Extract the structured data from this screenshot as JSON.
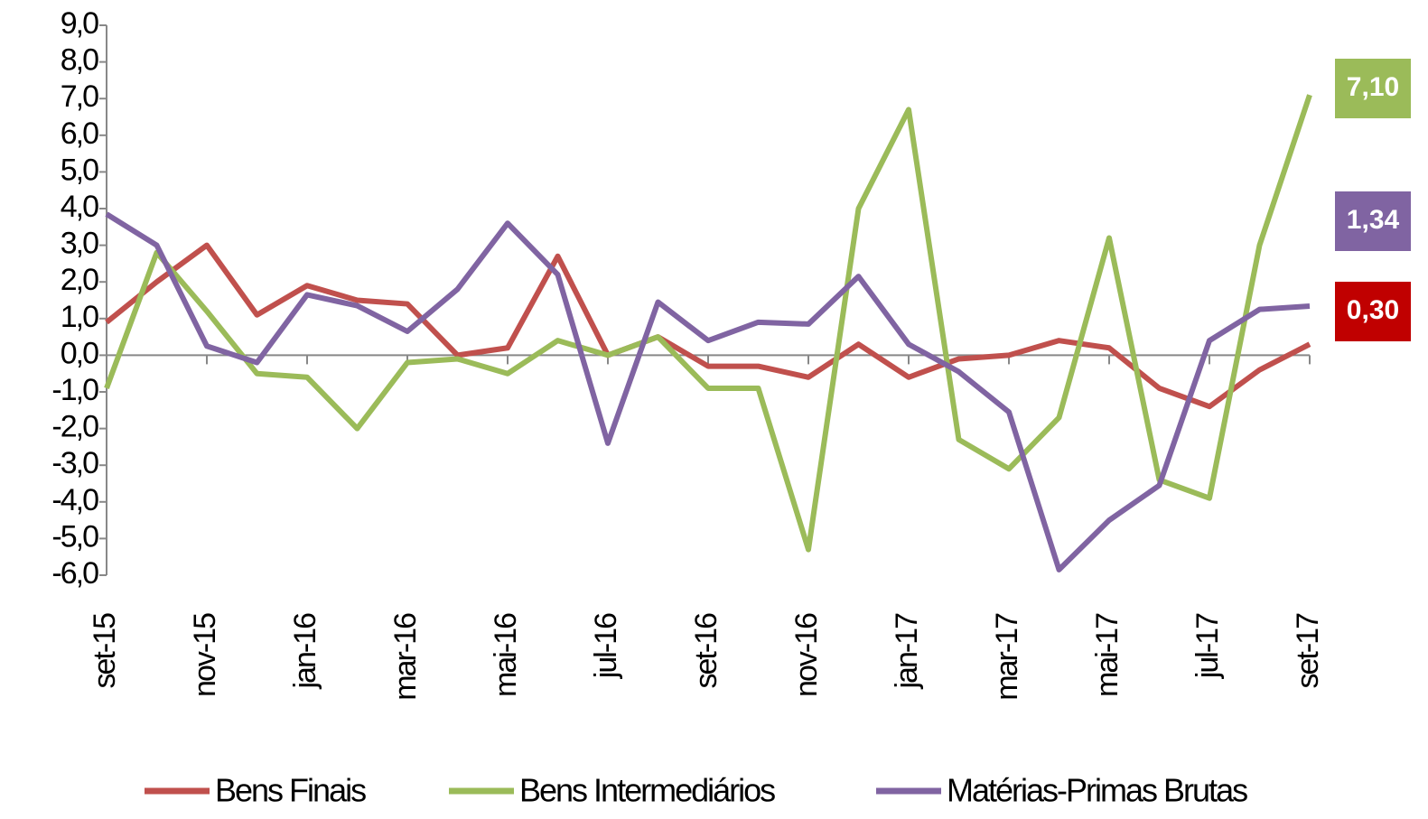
{
  "chart_data": {
    "type": "line",
    "categories": [
      "set-15",
      null,
      "nov-15",
      null,
      "jan-16",
      null,
      "mar-16",
      null,
      "mai-16",
      null,
      "jul-16",
      null,
      "set-16",
      null,
      "nov-16",
      null,
      "jan-17",
      null,
      "mar-17",
      null,
      "mai-17",
      null,
      "jul-17",
      null,
      "set-17"
    ],
    "series": [
      {
        "name": "Bens Finais",
        "color": "#c0504d",
        "label_color": "#c00000",
        "values": [
          0.9,
          2.0,
          3.0,
          1.1,
          1.9,
          1.5,
          1.4,
          0.0,
          0.2,
          2.7,
          0.0,
          0.5,
          -0.3,
          -0.3,
          -0.6,
          0.3,
          -0.6,
          -0.1,
          0.0,
          0.4,
          0.2,
          -0.9,
          -1.4,
          -0.4,
          0.3
        ],
        "value_labels": [
          null,
          null,
          null,
          null,
          null,
          null,
          null,
          null,
          null,
          null,
          null,
          null,
          null,
          null,
          null,
          null,
          null,
          null,
          null,
          null,
          null,
          null,
          null,
          null,
          "0,30"
        ]
      },
      {
        "name": "Bens Intermediários",
        "color": "#9bbb59",
        "label_color": "#9bbb59",
        "values": [
          -0.9,
          2.8,
          1.2,
          -0.5,
          -0.6,
          -2.0,
          -0.2,
          -0.1,
          -0.5,
          0.4,
          0.0,
          0.5,
          -0.9,
          -0.9,
          -5.3,
          4.0,
          6.7,
          -2.3,
          -3.1,
          -1.7,
          3.2,
          -3.4,
          -3.9,
          3.0,
          7.1
        ],
        "value_labels": [
          null,
          null,
          null,
          null,
          null,
          null,
          null,
          null,
          null,
          null,
          null,
          null,
          null,
          null,
          null,
          null,
          null,
          null,
          null,
          null,
          null,
          null,
          null,
          null,
          "7,10"
        ]
      },
      {
        "name": "Matérias-Primas Brutas",
        "color": "#8064a2",
        "label_color": "#8064a2",
        "values": [
          3.85,
          3.0,
          0.25,
          -0.2,
          1.65,
          1.35,
          0.65,
          1.8,
          3.6,
          2.2,
          -2.4,
          1.45,
          0.4,
          0.9,
          0.85,
          2.15,
          0.3,
          -0.45,
          -1.55,
          -5.85,
          -4.5,
          -3.55,
          0.4,
          1.25,
          1.34
        ],
        "value_labels": [
          null,
          null,
          null,
          null,
          null,
          null,
          null,
          null,
          null,
          null,
          null,
          null,
          null,
          null,
          null,
          null,
          null,
          null,
          null,
          null,
          null,
          null,
          null,
          null,
          "1,34"
        ]
      }
    ],
    "ylim": [
      -6,
      9
    ],
    "yticks": [
      {
        "value": -6,
        "label": "-6,0"
      },
      {
        "value": -5,
        "label": "-5,0"
      },
      {
        "value": -4,
        "label": "-4,0"
      },
      {
        "value": -3,
        "label": "-3,0"
      },
      {
        "value": -2,
        "label": "-2,0"
      },
      {
        "value": -1,
        "label": "-1,0"
      },
      {
        "value": 0,
        "label": "0,0"
      },
      {
        "value": 1,
        "label": "1,0"
      },
      {
        "value": 2,
        "label": "2,0"
      },
      {
        "value": 3,
        "label": "3,0"
      },
      {
        "value": 4,
        "label": "4,0"
      },
      {
        "value": 5,
        "label": "5,0"
      },
      {
        "value": 6,
        "label": "6,0"
      },
      {
        "value": 7,
        "label": "7,0"
      },
      {
        "value": 8,
        "label": "8,0"
      },
      {
        "value": 9,
        "label": "9,0"
      }
    ],
    "legend": "bottom",
    "grid": false
  }
}
